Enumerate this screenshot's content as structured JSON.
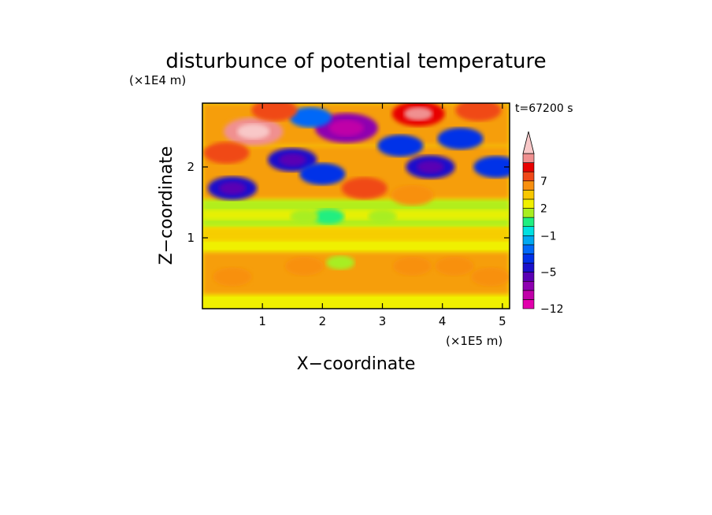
{
  "chart_data": {
    "type": "heatmap",
    "title": "disturbunce of potential temperature",
    "time_label": "t=67200 s",
    "xlabel": "X−coordinate",
    "ylabel": "Z−coordinate",
    "x_unit": "(×1E5 m)",
    "y_unit": "(×1E4 m)",
    "xlim": [
      0,
      5.12
    ],
    "ylim": [
      0,
      2.9
    ],
    "x_ticks": [
      "1",
      "2",
      "3",
      "4",
      "5"
    ],
    "y_ticks": [
      "1",
      "2"
    ],
    "x_tick_values": [
      1,
      2,
      3,
      4,
      5
    ],
    "y_tick_values": [
      1,
      2
    ],
    "colorbar": {
      "labels": [
        "7",
        "2",
        "−1",
        "−5",
        "−12"
      ],
      "label_levels": [
        7,
        2,
        -1,
        -5,
        -12
      ],
      "levels": [
        -12,
        -10,
        -8,
        -6,
        -5,
        -4,
        -3,
        -2,
        -1,
        0,
        1,
        2,
        3,
        5,
        7,
        9,
        11
      ],
      "colors": [
        "#e200ac",
        "#c000a8",
        "#8e00b0",
        "#5a00b4",
        "#1a10cc",
        "#0030e8",
        "#0068f8",
        "#00a8f0",
        "#00e0e0",
        "#20ee80",
        "#a8ee20",
        "#f0f000",
        "#f8c800",
        "#f89010",
        "#f04818",
        "#e80000",
        "#f09090",
        "#f8c8c8"
      ]
    },
    "features": [
      {
        "x": 2.4,
        "z": 2.55,
        "value": -10
      },
      {
        "x": 0.85,
        "z": 2.5,
        "value": 9
      },
      {
        "x": 0.5,
        "z": 1.7,
        "value": -6
      },
      {
        "x": 1.5,
        "z": 2.1,
        "value": -6
      },
      {
        "x": 2.0,
        "z": 1.9,
        "value": -5
      },
      {
        "x": 3.3,
        "z": 2.3,
        "value": -5
      },
      {
        "x": 4.3,
        "z": 2.4,
        "value": -5
      },
      {
        "x": 4.9,
        "z": 2.0,
        "value": -5
      },
      {
        "x": 3.8,
        "z": 2.0,
        "value": -6
      },
      {
        "x": 1.8,
        "z": 2.7,
        "value": -4
      },
      {
        "x": 3.6,
        "z": 2.75,
        "value": 7
      },
      {
        "x": 1.2,
        "z": 2.8,
        "value": 5
      },
      {
        "x": 4.6,
        "z": 2.8,
        "value": 5
      },
      {
        "x": 0.4,
        "z": 2.2,
        "value": 5
      },
      {
        "x": 2.7,
        "z": 1.7,
        "value": 5
      },
      {
        "x": 3.5,
        "z": 1.6,
        "value": 4
      },
      {
        "x": 0.5,
        "z": 0.45,
        "value": 3
      },
      {
        "x": 4.8,
        "z": 0.45,
        "value": 3
      },
      {
        "x": 1.7,
        "z": 0.6,
        "value": 3
      },
      {
        "x": 3.5,
        "z": 0.6,
        "value": 3
      },
      {
        "x": 4.2,
        "z": 0.6,
        "value": 3
      },
      {
        "x": 2.3,
        "z": 0.65,
        "value": 0
      },
      {
        "x": 2.1,
        "z": 1.3,
        "value": -1
      },
      {
        "x": 1.7,
        "z": 1.3,
        "value": 0
      },
      {
        "x": 3.0,
        "z": 1.3,
        "value": 0
      }
    ]
  }
}
